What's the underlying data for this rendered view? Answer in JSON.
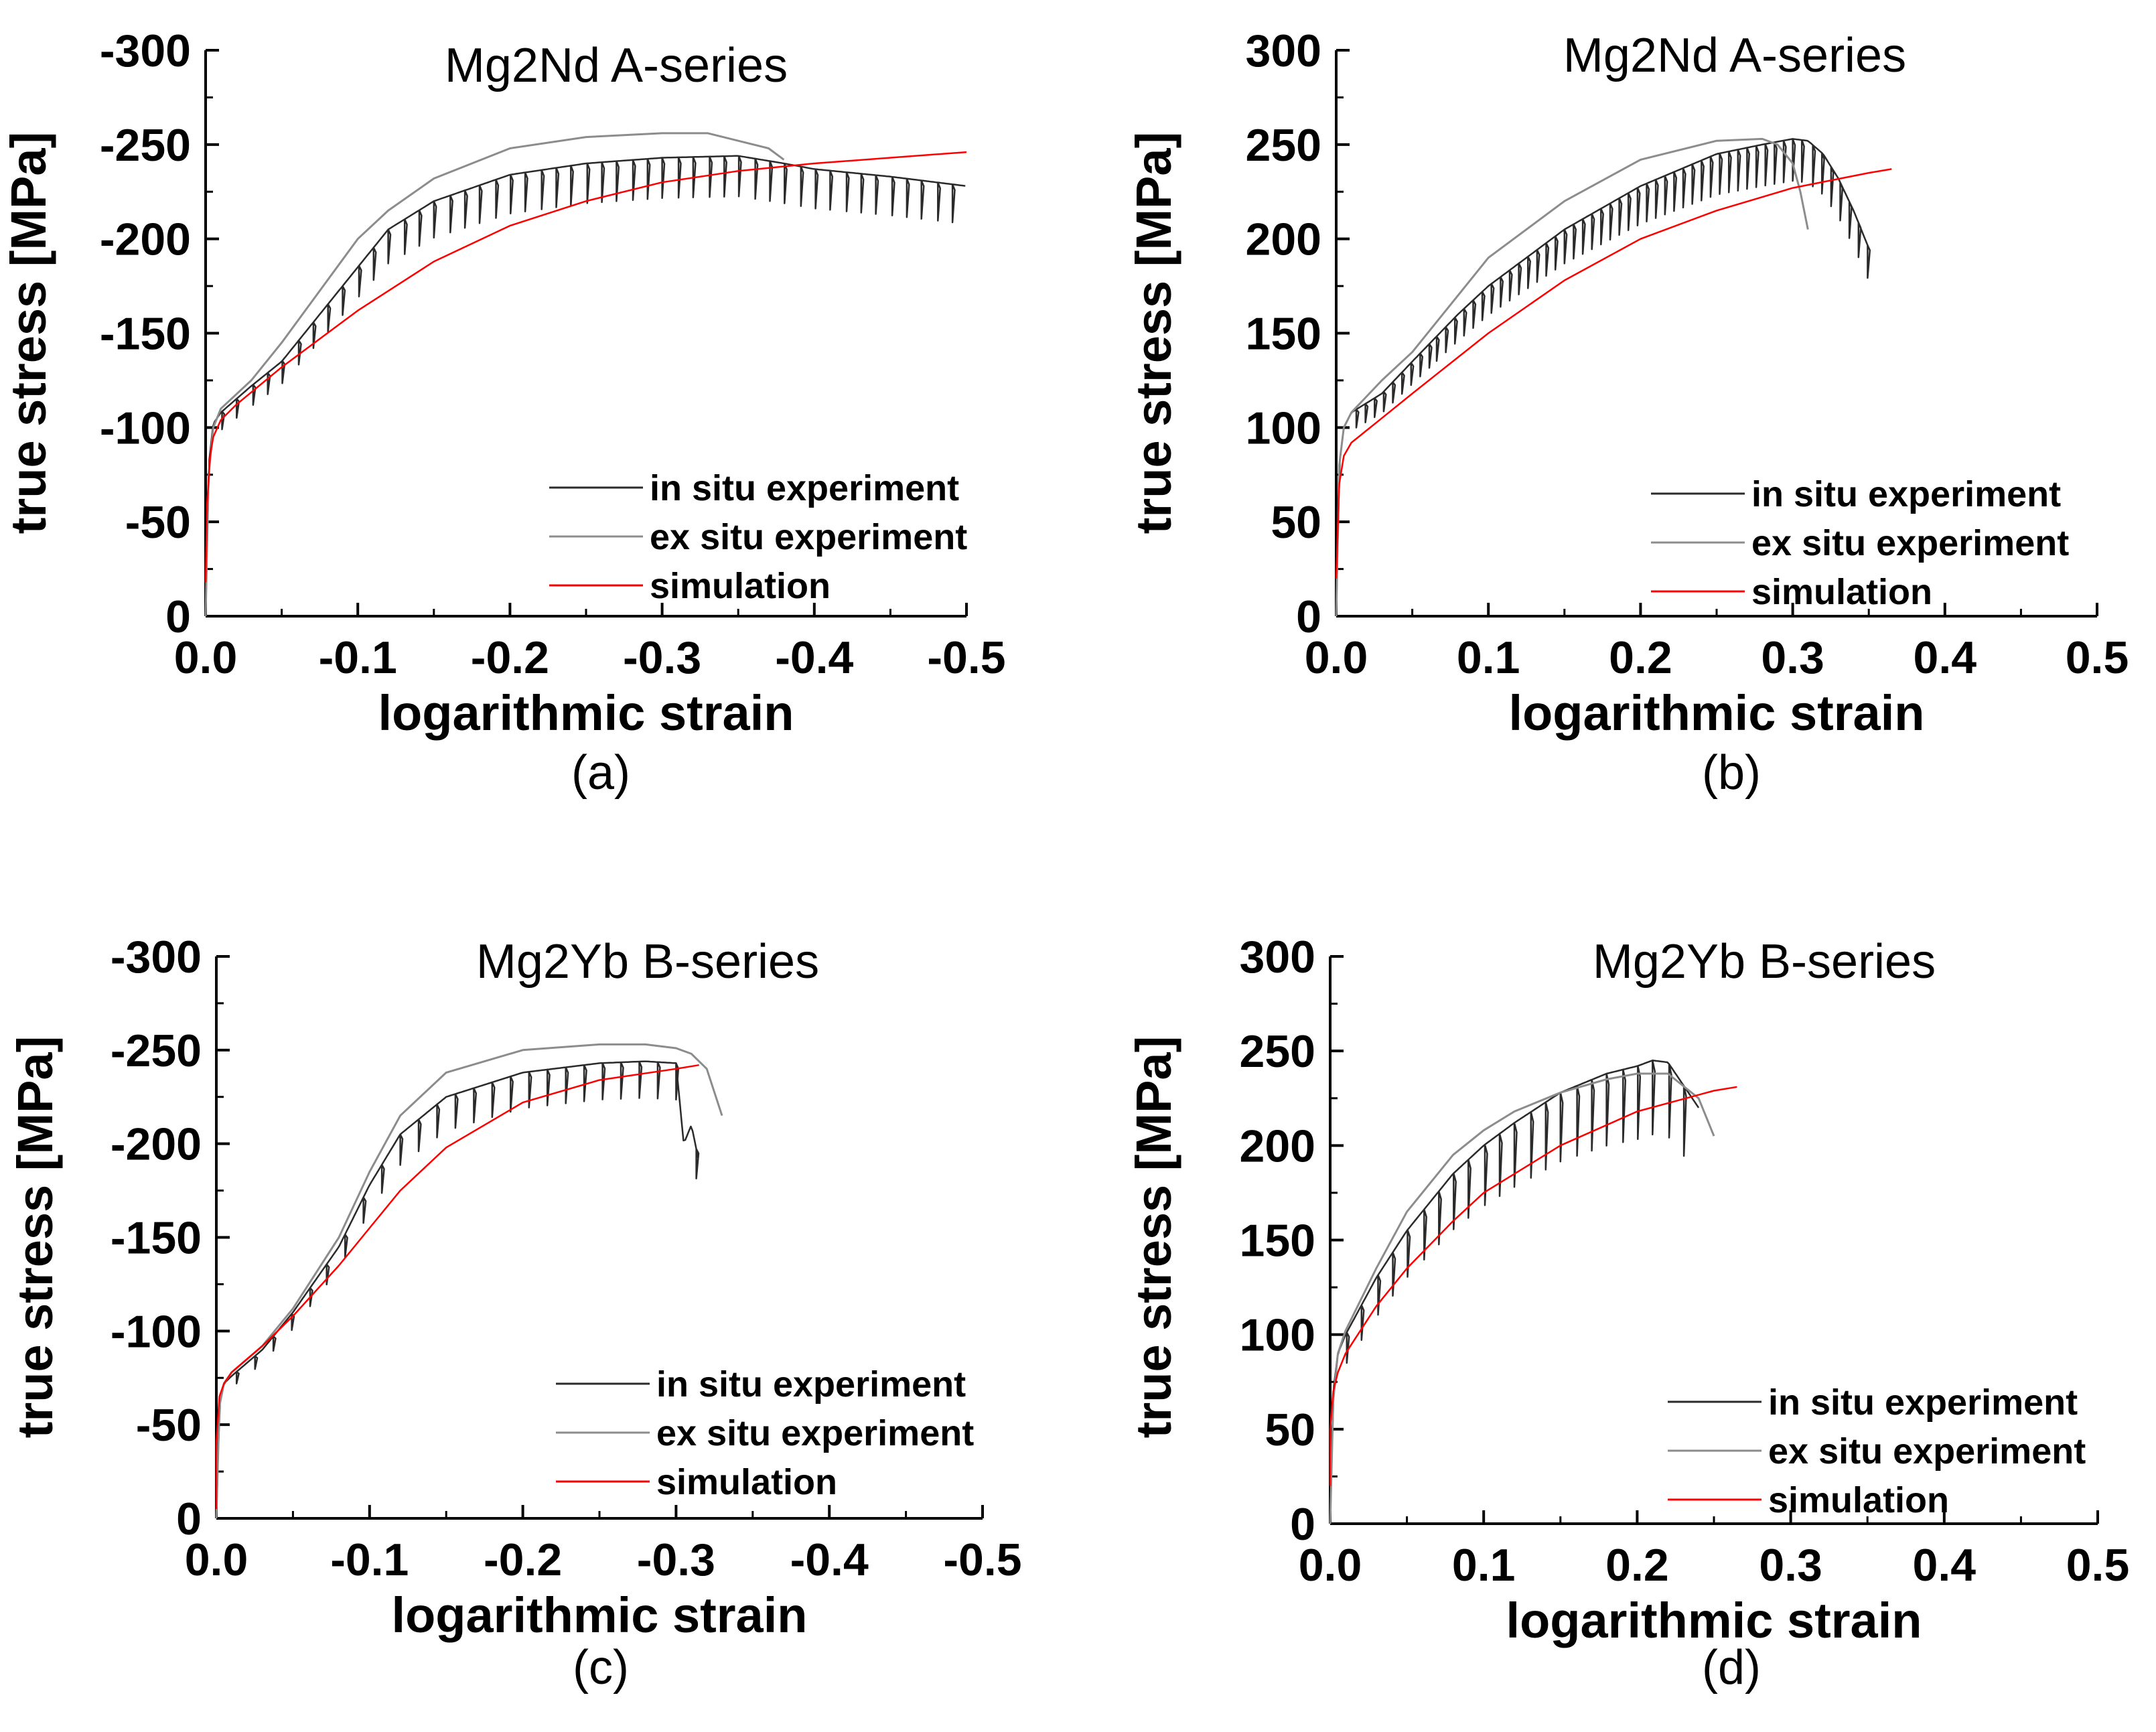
{
  "colors": {
    "in_situ": "#2a2a2a",
    "ex_situ": "#8c8c8c",
    "simulation": "#ff0000",
    "axis": "#000000"
  },
  "chart_data": [
    {
      "type": "line",
      "panel_label": "(a)",
      "title": "Mg2Nd A-series",
      "xlabel": "logarithmic strain",
      "ylabel": "true stress [MPa]",
      "xlim": [
        0.0,
        -0.5
      ],
      "ylim": [
        0,
        -300
      ],
      "xticks": [
        0.0,
        -0.1,
        -0.2,
        -0.3,
        -0.4,
        -0.5
      ],
      "xtick_labels": [
        "0.0",
        "-0.1",
        "-0.2",
        "-0.3",
        "-0.4",
        "-0.5"
      ],
      "yticks": [
        0,
        -50,
        -100,
        -150,
        -200,
        -250,
        -300
      ],
      "ytick_labels": [
        "0",
        "-50",
        "-100",
        "-150",
        "-200",
        "-250",
        "-300"
      ],
      "legend_position": "bottom-right",
      "series": [
        {
          "name": "in situ experiment",
          "style": "in_situ",
          "unload_every": 0.01,
          "unload_depth": 22,
          "x": [
            0,
            -0.002,
            -0.005,
            -0.01,
            -0.03,
            -0.05,
            -0.08,
            -0.1,
            -0.12,
            -0.15,
            -0.2,
            -0.25,
            -0.3,
            -0.35,
            -0.38,
            -0.4,
            -0.45,
            -0.48,
            -0.5
          ],
          "y": [
            0,
            -80,
            -102,
            -108,
            -122,
            -135,
            -165,
            -185,
            -205,
            -220,
            -234,
            -240,
            -243,
            -244,
            -240,
            -237,
            -233,
            -230,
            -228
          ]
        },
        {
          "name": "ex situ experiment",
          "style": "ex_situ",
          "x": [
            0,
            -0.002,
            -0.005,
            -0.01,
            -0.03,
            -0.05,
            -0.08,
            -0.1,
            -0.12,
            -0.15,
            -0.2,
            -0.25,
            -0.3,
            -0.33,
            -0.35,
            -0.37,
            -0.38
          ],
          "y": [
            0,
            -75,
            -100,
            -110,
            -125,
            -145,
            -178,
            -200,
            -215,
            -232,
            -248,
            -254,
            -256,
            -256,
            -252,
            -248,
            -242
          ]
        },
        {
          "name": "simulation",
          "style": "simulation",
          "x": [
            0,
            -0.001,
            -0.003,
            -0.005,
            -0.01,
            -0.02,
            -0.05,
            -0.1,
            -0.15,
            -0.2,
            -0.25,
            -0.3,
            -0.35,
            -0.4,
            -0.45,
            -0.5
          ],
          "y": [
            -18,
            -60,
            -85,
            -95,
            -104,
            -112,
            -132,
            -162,
            -188,
            -207,
            -220,
            -230,
            -236,
            -240,
            -243,
            -246
          ]
        }
      ]
    },
    {
      "type": "line",
      "panel_label": "(b)",
      "title": "Mg2Nd A-series",
      "xlabel": "logarithmic strain",
      "ylabel": "true stress [MPa]",
      "xlim": [
        0.0,
        0.5
      ],
      "ylim": [
        0,
        300
      ],
      "xticks": [
        0.0,
        0.1,
        0.2,
        0.3,
        0.4,
        0.5
      ],
      "xtick_labels": [
        "0.0",
        "0.1",
        "0.2",
        "0.3",
        "0.4",
        "0.5"
      ],
      "yticks": [
        0,
        50,
        100,
        150,
        200,
        250,
        300
      ],
      "ytick_labels": [
        "0",
        "50",
        "100",
        "150",
        "200",
        "250",
        "300"
      ],
      "legend_position": "bottom-right",
      "series": [
        {
          "name": "in situ experiment",
          "style": "in_situ",
          "unload_every": 0.006,
          "unload_depth": 22,
          "x": [
            0,
            0.002,
            0.005,
            0.01,
            0.03,
            0.05,
            0.08,
            0.1,
            0.15,
            0.2,
            0.25,
            0.28,
            0.3,
            0.31,
            0.32,
            0.33,
            0.34,
            0.35
          ],
          "y": [
            0,
            80,
            100,
            108,
            118,
            135,
            160,
            175,
            205,
            228,
            245,
            250,
            253,
            252,
            245,
            232,
            215,
            195
          ]
        },
        {
          "name": "ex situ experiment",
          "style": "ex_situ",
          "x": [
            0,
            0.002,
            0.005,
            0.01,
            0.03,
            0.05,
            0.08,
            0.1,
            0.15,
            0.2,
            0.25,
            0.28,
            0.29,
            0.3,
            0.305,
            0.31
          ],
          "y": [
            0,
            80,
            100,
            108,
            125,
            140,
            170,
            190,
            220,
            242,
            252,
            253,
            250,
            240,
            225,
            205
          ]
        },
        {
          "name": "simulation",
          "style": "simulation",
          "x": [
            0,
            0.002,
            0.005,
            0.01,
            0.03,
            0.05,
            0.1,
            0.15,
            0.2,
            0.25,
            0.3,
            0.35,
            0.365
          ],
          "y": [
            20,
            70,
            85,
            92,
            105,
            118,
            150,
            178,
            200,
            215,
            227,
            235,
            237
          ]
        }
      ]
    },
    {
      "type": "line",
      "panel_label": "(c)",
      "title": "Mg2Yb B-series",
      "xlabel": "logarithmic strain",
      "ylabel": "true stress [MPa]",
      "xlim": [
        0.0,
        -0.5
      ],
      "ylim": [
        0,
        -300
      ],
      "xticks": [
        0.0,
        -0.1,
        -0.2,
        -0.3,
        -0.4,
        -0.5
      ],
      "xtick_labels": [
        "0.0",
        "-0.1",
        "-0.2",
        "-0.3",
        "-0.4",
        "-0.5"
      ],
      "yticks": [
        0,
        -50,
        -100,
        -150,
        -200,
        -250,
        -300
      ],
      "ytick_labels": [
        "0",
        "-50",
        "-100",
        "-150",
        "-200",
        "-250",
        "-300"
      ],
      "legend_position": "bottom-right",
      "series": [
        {
          "name": "in situ experiment",
          "style": "in_situ",
          "unload_every": 0.012,
          "unload_depth": 20,
          "x": [
            0,
            -0.002,
            -0.005,
            -0.01,
            -0.03,
            -0.05,
            -0.08,
            -0.1,
            -0.12,
            -0.15,
            -0.2,
            -0.25,
            -0.28,
            -0.3,
            -0.305,
            -0.31,
            -0.315
          ],
          "y": [
            0,
            -60,
            -72,
            -76,
            -90,
            -110,
            -145,
            -178,
            -205,
            -225,
            -238,
            -243,
            -244,
            -243,
            -200,
            -210,
            -190
          ]
        },
        {
          "name": "ex situ experiment",
          "style": "ex_situ",
          "x": [
            0,
            -0.002,
            -0.005,
            -0.01,
            -0.03,
            -0.05,
            -0.08,
            -0.1,
            -0.12,
            -0.15,
            -0.2,
            -0.25,
            -0.28,
            -0.3,
            -0.31,
            -0.32,
            -0.33
          ],
          "y": [
            0,
            -60,
            -72,
            -78,
            -92,
            -112,
            -150,
            -185,
            -215,
            -238,
            -250,
            -253,
            -253,
            -251,
            -248,
            -240,
            -215
          ]
        },
        {
          "name": "simulation",
          "style": "simulation",
          "x": [
            0,
            0.0,
            -0.002,
            -0.005,
            -0.01,
            -0.03,
            -0.05,
            -0.08,
            -0.1,
            -0.12,
            -0.15,
            -0.2,
            -0.25,
            -0.3,
            -0.315
          ],
          "y": [
            -5,
            -40,
            -65,
            -72,
            -78,
            -92,
            -108,
            -135,
            -155,
            -175,
            -198,
            -222,
            -234,
            -240,
            -242
          ]
        }
      ]
    },
    {
      "type": "line",
      "panel_label": "(d)",
      "title": "Mg2Yb B-series",
      "xlabel": "logarithmic strain",
      "ylabel": "true stress [MPa]",
      "xlim": [
        0.0,
        0.5
      ],
      "ylim": [
        0,
        300
      ],
      "xticks": [
        0.0,
        0.1,
        0.2,
        0.3,
        0.4,
        0.5
      ],
      "xtick_labels": [
        "0.0",
        "0.1",
        "0.2",
        "0.3",
        "0.4",
        "0.5"
      ],
      "yticks": [
        0,
        50,
        100,
        150,
        200,
        250,
        300
      ],
      "ytick_labels": [
        "0",
        "50",
        "100",
        "150",
        "200",
        "250",
        "300"
      ],
      "legend_position": "bottom-right",
      "series": [
        {
          "name": "in situ experiment",
          "style": "in_situ",
          "unload_every": 0.01,
          "unload_depth": 40,
          "x": [
            0,
            0.002,
            0.005,
            0.01,
            0.03,
            0.05,
            0.08,
            0.1,
            0.12,
            0.15,
            0.18,
            0.2,
            0.21,
            0.22,
            0.23,
            0.24
          ],
          "y": [
            0,
            70,
            90,
            100,
            130,
            155,
            185,
            200,
            212,
            228,
            238,
            242,
            245,
            244,
            232,
            220
          ]
        },
        {
          "name": "ex situ experiment",
          "style": "ex_situ",
          "x": [
            0,
            0.002,
            0.005,
            0.01,
            0.03,
            0.05,
            0.08,
            0.1,
            0.12,
            0.15,
            0.18,
            0.2,
            0.22,
            0.24,
            0.25
          ],
          "y": [
            0,
            65,
            90,
            102,
            135,
            165,
            195,
            208,
            218,
            228,
            235,
            238,
            238,
            225,
            205
          ]
        },
        {
          "name": "simulation",
          "style": "simulation",
          "x": [
            0,
            0.0,
            0.002,
            0.005,
            0.01,
            0.03,
            0.05,
            0.08,
            0.1,
            0.15,
            0.2,
            0.25,
            0.265
          ],
          "y": [
            20,
            50,
            70,
            80,
            90,
            115,
            135,
            160,
            175,
            200,
            218,
            229,
            231
          ]
        }
      ]
    }
  ]
}
